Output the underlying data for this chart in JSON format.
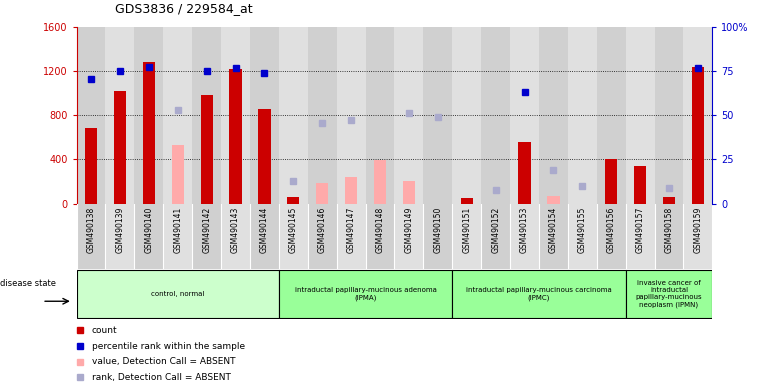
{
  "title": "GDS3836 / 229584_at",
  "samples": [
    "GSM490138",
    "GSM490139",
    "GSM490140",
    "GSM490141",
    "GSM490142",
    "GSM490143",
    "GSM490144",
    "GSM490145",
    "GSM490146",
    "GSM490147",
    "GSM490148",
    "GSM490149",
    "GSM490150",
    "GSM490151",
    "GSM490152",
    "GSM490153",
    "GSM490154",
    "GSM490155",
    "GSM490156",
    "GSM490157",
    "GSM490158",
    "GSM490159"
  ],
  "count_values": [
    680,
    1020,
    1280,
    null,
    980,
    1220,
    860,
    60,
    null,
    null,
    null,
    null,
    null,
    50,
    null,
    560,
    null,
    null,
    400,
    340,
    60,
    1240
  ],
  "count_absent": [
    null,
    null,
    null,
    530,
    null,
    null,
    null,
    null,
    190,
    240,
    390,
    200,
    null,
    null,
    null,
    null,
    70,
    null,
    null,
    null,
    null,
    null
  ],
  "percentile_values": [
    1130,
    1200,
    1240,
    null,
    1200,
    1230,
    1185,
    null,
    null,
    null,
    null,
    null,
    null,
    null,
    null,
    1010,
    null,
    null,
    null,
    null,
    null,
    1230
  ],
  "rank_absent": [
    null,
    null,
    null,
    850,
    null,
    null,
    null,
    200,
    730,
    760,
    null,
    820,
    780,
    null,
    120,
    null,
    300,
    160,
    null,
    null,
    140,
    null
  ],
  "groups": [
    {
      "label": "control, normal",
      "start": 0,
      "end": 7,
      "color": "#ccffcc"
    },
    {
      "label": "intraductal papillary-mucinous adenoma\n(IPMA)",
      "start": 7,
      "end": 13,
      "color": "#99ff99"
    },
    {
      "label": "intraductal papillary-mucinous carcinoma\n(IPMC)",
      "start": 13,
      "end": 19,
      "color": "#99ff99"
    },
    {
      "label": "invasive cancer of\nintraductal\npapillary-mucinous\nneoplasm (IPMN)",
      "start": 19,
      "end": 22,
      "color": "#99ff99"
    }
  ],
  "ylim_left": [
    0,
    1600
  ],
  "ylim_right": [
    0,
    100
  ],
  "yticks_left": [
    0,
    400,
    800,
    1200,
    1600
  ],
  "yticks_right": [
    0,
    25,
    50,
    75,
    100
  ],
  "count_color": "#cc0000",
  "count_absent_color": "#ffaaaa",
  "percentile_color": "#0000cc",
  "rank_absent_color": "#aaaacc",
  "col_bg_odd": "#d0d0d0",
  "col_bg_even": "#e0e0e0",
  "plot_bg": "#ffffff"
}
